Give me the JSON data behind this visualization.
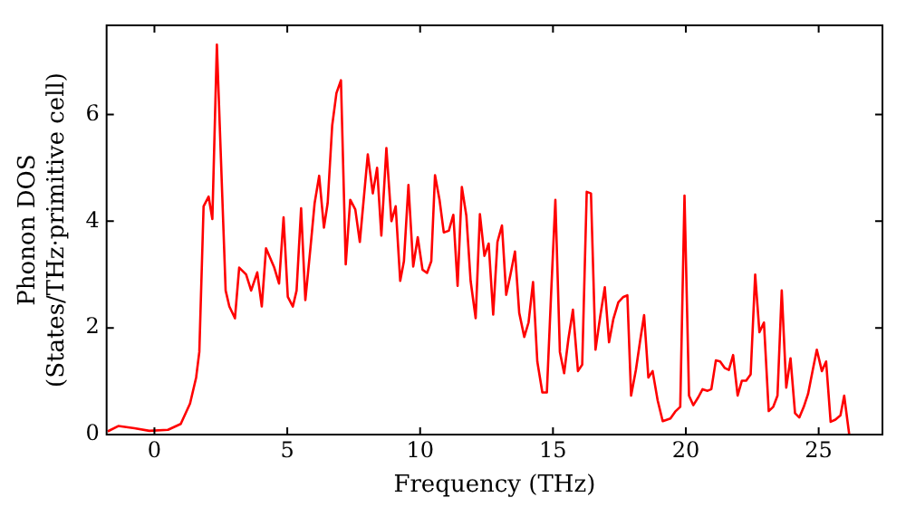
{
  "chart_data": {
    "type": "line",
    "xlabel": "Frequency (THz)",
    "ylabel": "Phonon DOS\n(States/THz·primitive cell)",
    "xlim": [
      -1.8,
      27.4
    ],
    "xticks": [
      0,
      5,
      10,
      15,
      20,
      25
    ],
    "ylim": [
      0,
      7.67
    ],
    "yticks": [
      0,
      2,
      4,
      6
    ],
    "grid": false,
    "legend": false,
    "marker": "none",
    "line_style": "solid",
    "series": [
      {
        "color": "#ff0000",
        "x": [
          -1.76,
          -1.36,
          -0.75,
          -0.19,
          0.51,
          0.99,
          1.34,
          1.57,
          1.69,
          1.85,
          2.04,
          2.18,
          2.35,
          2.68,
          2.82,
          3.03,
          3.19,
          3.45,
          3.64,
          3.87,
          4.04,
          4.2,
          4.51,
          4.69,
          4.86,
          5.02,
          5.21,
          5.35,
          5.52,
          5.68,
          5.87,
          6.03,
          6.2,
          6.38,
          6.52,
          6.69,
          6.85,
          7.02,
          7.2,
          7.37,
          7.56,
          7.73,
          8.03,
          8.22,
          8.38,
          8.54,
          8.73,
          8.92,
          9.08,
          9.25,
          9.39,
          9.56,
          9.74,
          9.91,
          10.09,
          10.26,
          10.42,
          10.56,
          10.73,
          10.89,
          11.08,
          11.25,
          11.41,
          11.57,
          11.74,
          11.9,
          12.09,
          12.25,
          12.42,
          12.58,
          12.75,
          12.91,
          13.08,
          13.24,
          13.4,
          13.57,
          13.73,
          13.92,
          14.08,
          14.25,
          14.41,
          14.6,
          14.77,
          14.93,
          15.09,
          15.26,
          15.42,
          15.58,
          15.75,
          15.94,
          16.1,
          16.27,
          16.43,
          16.6,
          16.78,
          16.95,
          17.11,
          17.27,
          17.46,
          17.65,
          17.8,
          17.94,
          18.12,
          18.29,
          18.43,
          18.59,
          18.75,
          18.94,
          19.13,
          19.42,
          19.6,
          19.79,
          19.95,
          20.12,
          20.28,
          20.47,
          20.63,
          20.82,
          20.96,
          21.13,
          21.29,
          21.46,
          21.62,
          21.78,
          21.95,
          22.11,
          22.27,
          22.44,
          22.61,
          22.77,
          22.94,
          23.12,
          23.29,
          23.45,
          23.61,
          23.78,
          23.94,
          24.11,
          24.27,
          24.44,
          24.6,
          24.77,
          24.93,
          25.12,
          25.28,
          25.45,
          25.63,
          25.82,
          25.96,
          26.15
        ],
        "values": [
          0.06,
          0.16,
          0.12,
          0.07,
          0.09,
          0.2,
          0.58,
          1.07,
          1.55,
          4.28,
          4.46,
          4.04,
          7.31,
          2.7,
          2.4,
          2.18,
          3.13,
          3.0,
          2.7,
          3.04,
          2.4,
          3.49,
          3.13,
          2.83,
          4.07,
          2.58,
          2.4,
          2.7,
          4.24,
          2.52,
          3.49,
          4.34,
          4.85,
          3.88,
          4.34,
          5.79,
          6.4,
          6.64,
          3.19,
          4.4,
          4.22,
          3.61,
          5.25,
          4.52,
          5.0,
          3.73,
          5.37,
          4.0,
          4.28,
          2.88,
          3.25,
          4.68,
          3.15,
          3.7,
          3.09,
          3.03,
          3.25,
          4.86,
          4.4,
          3.79,
          3.82,
          4.12,
          2.79,
          4.64,
          4.1,
          2.88,
          2.18,
          4.13,
          3.35,
          3.58,
          2.25,
          3.61,
          3.92,
          2.62,
          3.0,
          3.43,
          2.28,
          1.83,
          2.1,
          2.86,
          1.37,
          0.79,
          0.79,
          2.64,
          4.4,
          1.55,
          1.15,
          1.79,
          2.34,
          1.19,
          1.31,
          4.55,
          4.52,
          1.59,
          2.22,
          2.76,
          1.73,
          2.16,
          2.48,
          2.58,
          2.61,
          0.73,
          1.21,
          1.79,
          2.24,
          1.07,
          1.19,
          0.64,
          0.25,
          0.3,
          0.43,
          0.52,
          4.48,
          0.73,
          0.55,
          0.7,
          0.85,
          0.82,
          0.85,
          1.39,
          1.37,
          1.25,
          1.21,
          1.49,
          0.73,
          1.01,
          1.01,
          1.13,
          3.0,
          1.92,
          2.1,
          0.44,
          0.52,
          0.73,
          2.7,
          0.88,
          1.43,
          0.4,
          0.32,
          0.52,
          0.76,
          1.19,
          1.59,
          1.19,
          1.37,
          0.24,
          0.28,
          0.36,
          0.73,
          0.0
        ]
      }
    ]
  }
}
